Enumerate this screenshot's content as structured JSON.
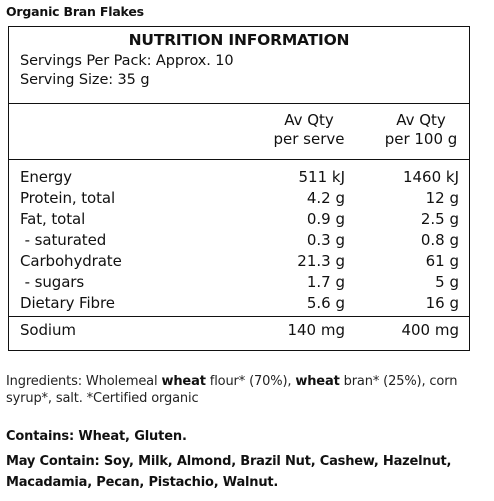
{
  "product": {
    "title": "Organic Bran Flakes"
  },
  "panel": {
    "title": "NUTRITION INFORMATION",
    "servings_per_pack": "Servings Per Pack: Approx. 10",
    "serving_size": "Serving Size: 35 g",
    "columns": [
      {
        "line1": "Av Qty",
        "line2": "per serve"
      },
      {
        "line1": "Av Qty",
        "line2": "per 100 g"
      }
    ],
    "rows": [
      {
        "label": "Energy",
        "per_serve": "511 kJ",
        "per_100g": "1460 kJ"
      },
      {
        "label": "Protein, total",
        "per_serve": "4.2 g",
        "per_100g": "12 g"
      },
      {
        "label": "Fat, total",
        "per_serve": "0.9 g",
        "per_100g": "2.5 g"
      },
      {
        "label": " - saturated",
        "per_serve": "0.3 g",
        "per_100g": "0.8 g"
      },
      {
        "label": "Carbohydrate",
        "per_serve": "21.3 g",
        "per_100g": "61 g"
      },
      {
        "label": " - sugars",
        "per_serve": "1.7 g",
        "per_100g": "5 g"
      },
      {
        "label": "Dietary Fibre",
        "per_serve": "5.6 g",
        "per_100g": "16 g"
      },
      {
        "label": "Sodium",
        "per_serve": "140 mg",
        "per_100g": "400 mg"
      }
    ]
  },
  "ingredients": {
    "prefix": "Ingredients: Wholemeal ",
    "bold1": "wheat",
    "middle": " flour* (70%), ",
    "bold2": "wheat",
    "suffix": " bran* (25%), corn syrup*, salt. *Certified organic"
  },
  "allergens": {
    "contains": "Contains: Wheat, Gluten.",
    "may_contain": "May Contain: Soy, Milk, Almond, Brazil Nut, Cashew, Hazelnut, Macadamia, Pecan, Pistachio, Walnut."
  }
}
